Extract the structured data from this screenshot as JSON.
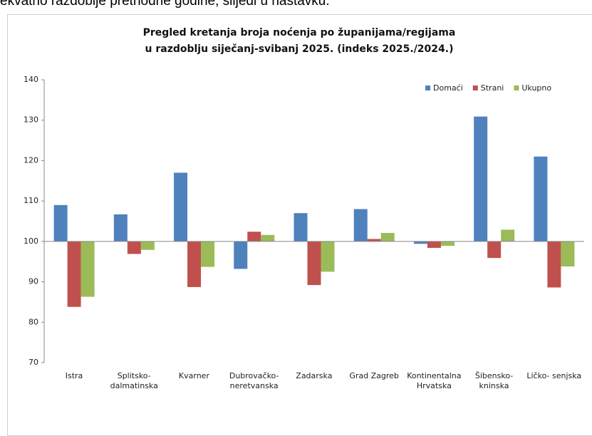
{
  "caption": "ekvatno razdoblje prethodne godine, slijedi u nastavku.",
  "chart_data": {
    "type": "bar",
    "title": [
      "Pregled kretanja broja noćenja po županijama/regijama",
      "u razdoblju siječanj-svibanj 2025. (indeks 2025./2024.)"
    ],
    "categories": [
      "Istra",
      "Splitsko-\ndalmatinska",
      "Kvarner",
      "Dubrovačko-\nneretvanska",
      "Zadarska",
      "Grad Zagreb",
      "Kontinentalna\nHrvatska",
      "Šibensko-\nkninska",
      "Ličko- senjska"
    ],
    "series": [
      {
        "name": "Domaći",
        "color": "#4f81bd",
        "values": [
          109,
          106.7,
          117,
          93.2,
          107,
          108,
          99.4,
          130.9,
          121
        ]
      },
      {
        "name": "Strani",
        "color": "#c0504d",
        "values": [
          83.8,
          96.9,
          88.7,
          102.4,
          89.2,
          100.6,
          98.4,
          95.9,
          88.6
        ]
      },
      {
        "name": "Ukupno",
        "color": "#9bbb59",
        "values": [
          86.3,
          97.9,
          93.7,
          101.6,
          92.5,
          102.1,
          98.9,
          102.9,
          93.8
        ]
      }
    ],
    "ylim": [
      70,
      140
    ],
    "yticks": [
      70,
      80,
      90,
      100,
      110,
      120,
      130,
      140
    ],
    "baseline": 100,
    "grid": false,
    "legend": "top-right"
  }
}
